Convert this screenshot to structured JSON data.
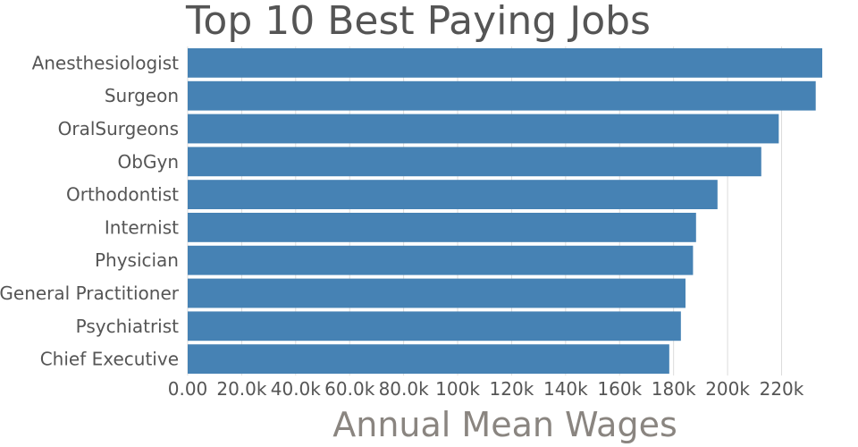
{
  "chart_data": {
    "type": "bar",
    "orientation": "horizontal",
    "title": "Top 10 Best Paying Jobs",
    "xlabel": "Annual Mean Wages",
    "ylabel": "",
    "categories": [
      "Anesthesiologist",
      "Surgeon",
      "OralSurgeons",
      "ObGyn",
      "Orthodontist",
      "Internist",
      "Physician",
      "General Practitioner",
      "Psychiatrist",
      "Chief Executive"
    ],
    "values": [
      235070,
      232650,
      218960,
      212480,
      196270,
      188320,
      187200,
      184410,
      182700,
      178400
    ],
    "xlim": [
      0,
      235070
    ],
    "xticks": [
      0,
      20000,
      40000,
      60000,
      80000,
      100000,
      120000,
      140000,
      160000,
      180000,
      200000,
      220000
    ],
    "xtick_labels": [
      "0.00",
      "20.0k",
      "40.0k",
      "60.0k",
      "80.0k",
      "100k",
      "120k",
      "140k",
      "160k",
      "180k",
      "200k",
      "220k"
    ],
    "grid": true,
    "bar_color": "#4682b4"
  }
}
